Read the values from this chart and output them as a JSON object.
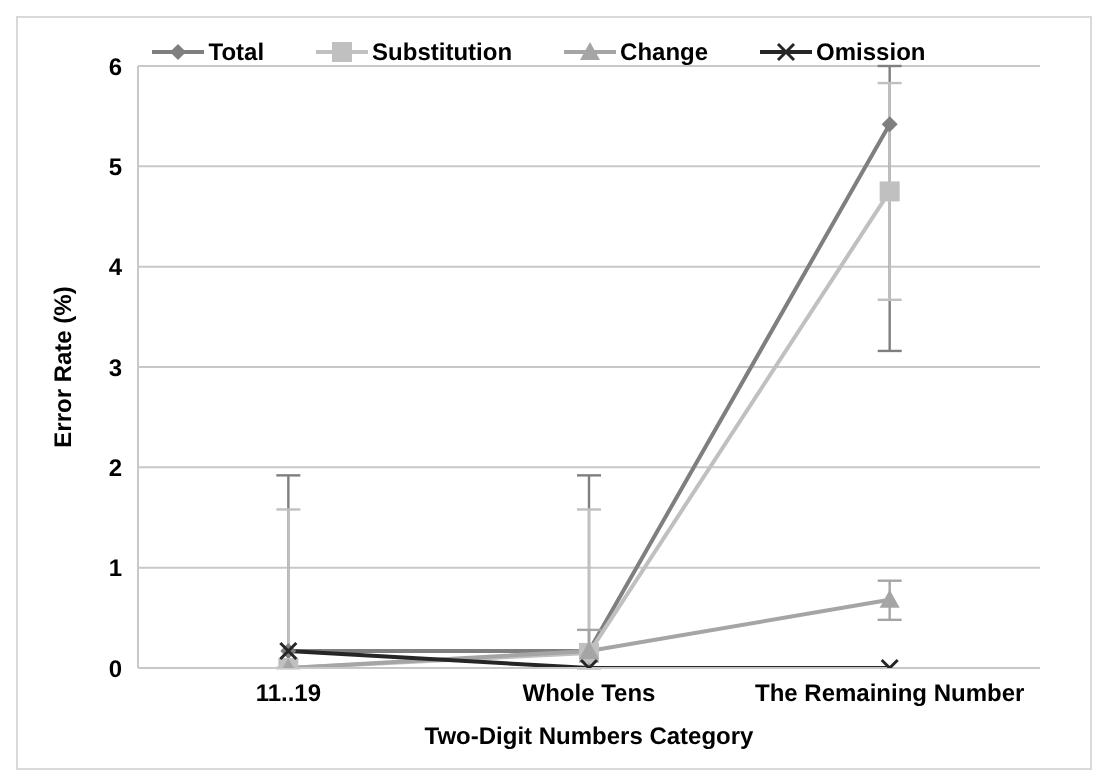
{
  "chart_data": {
    "type": "line",
    "xlabel": "Two-Digit Numbers Category",
    "ylabel": "Error Rate (%)",
    "categories": [
      "11..19",
      "Whole Tens",
      "The Remaining Number"
    ],
    "ylim": [
      0,
      6
    ],
    "yticks": [
      0,
      1,
      2,
      3,
      4,
      5,
      6
    ],
    "grid": "y",
    "legend": "top",
    "series": [
      {
        "name": "Total",
        "color": "#7f7f7f",
        "marker": "diamond",
        "values": [
          0.17,
          0.17,
          5.42
        ],
        "errors": [
          [
            0,
            1.92
          ],
          [
            0,
            1.92
          ],
          [
            3.16,
            6
          ]
        ]
      },
      {
        "name": "Substitution",
        "color": "#c0c0c0",
        "marker": "square",
        "values": [
          0,
          0.15,
          4.75
        ],
        "errors": [
          [
            0,
            1.58
          ],
          [
            0,
            1.58
          ],
          [
            3.67,
            5.83
          ]
        ]
      },
      {
        "name": "Change",
        "color": "#a5a5a5",
        "marker": "triangle",
        "values": [
          0,
          0.17,
          0.68
        ],
        "errors": [
          null,
          [
            0,
            0.38
          ],
          [
            0.48,
            0.87
          ]
        ]
      },
      {
        "name": "Omission",
        "color": "#262626",
        "marker": "cross",
        "values": [
          0.17,
          0,
          0
        ]
      }
    ]
  }
}
